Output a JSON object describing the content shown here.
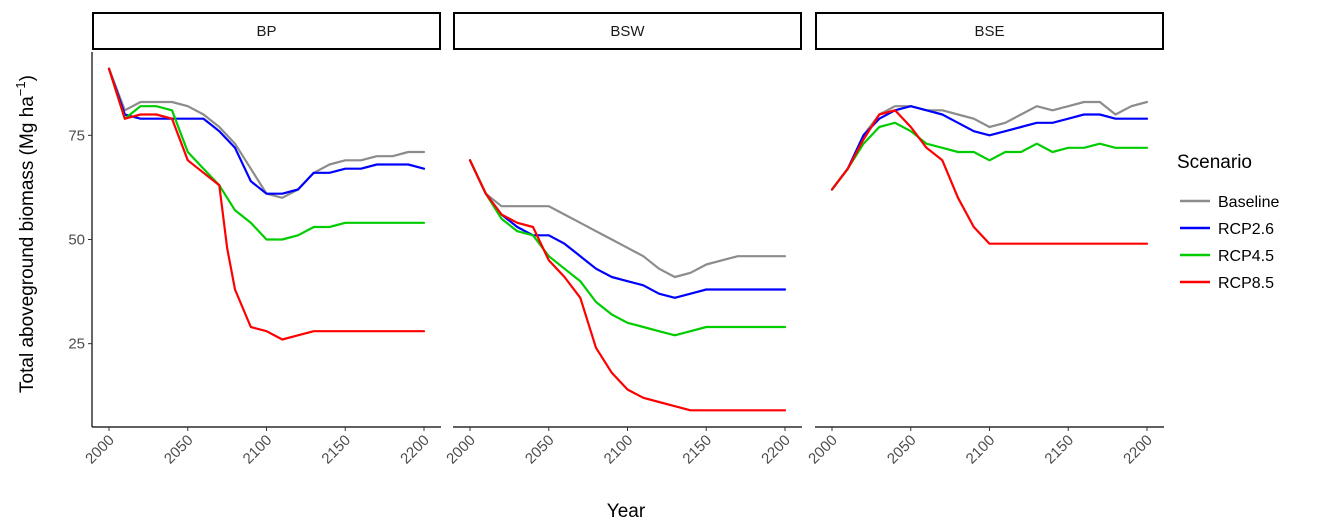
{
  "chart_data": {
    "type": "line",
    "xlabel": "Year",
    "ylabel": "Total aboveground biomass (Mg ha",
    "ylabel_unit_exponent": "−1",
    "ylabel_close": ")",
    "xlim": [
      2000,
      2200
    ],
    "ylim": [
      5,
      95
    ],
    "x_ticks": [
      "2000",
      "2050",
      "2100",
      "2150",
      "2200"
    ],
    "y_ticks": [
      "25",
      "50",
      "75"
    ],
    "legend": {
      "title": "Scenario",
      "position": "right"
    },
    "colors": {
      "Baseline": "#8c8c8c",
      "RCP2.6": "#0000ff",
      "RCP4.5": "#00cc00",
      "RCP8.5": "#ff0000"
    },
    "series_names": [
      "Baseline",
      "RCP2.6",
      "RCP4.5",
      "RCP8.5"
    ],
    "panels": [
      {
        "title": "BP",
        "series": [
          {
            "name": "Baseline",
            "x": [
              2000,
              2010,
              2020,
              2030,
              2040,
              2050,
              2060,
              2070,
              2080,
              2090,
              2100,
              2110,
              2120,
              2130,
              2140,
              2150,
              2160,
              2170,
              2180,
              2190,
              2200
            ],
            "y": [
              91,
              81,
              83,
              83,
              83,
              82,
              80,
              77,
              73,
              67,
              61,
              60,
              62,
              66,
              68,
              69,
              69,
              70,
              70,
              71,
              71
            ]
          },
          {
            "name": "RCP2.6",
            "x": [
              2000,
              2010,
              2020,
              2030,
              2040,
              2050,
              2060,
              2070,
              2080,
              2090,
              2100,
              2110,
              2120,
              2130,
              2140,
              2150,
              2160,
              2170,
              2180,
              2190,
              2200
            ],
            "y": [
              91,
              80,
              79,
              79,
              79,
              79,
              79,
              76,
              72,
              64,
              61,
              61,
              62,
              66,
              66,
              67,
              67,
              68,
              68,
              68,
              67
            ]
          },
          {
            "name": "RCP4.5",
            "x": [
              2000,
              2010,
              2020,
              2030,
              2040,
              2050,
              2060,
              2070,
              2080,
              2090,
              2100,
              2110,
              2120,
              2130,
              2140,
              2150,
              2160,
              2170,
              2180,
              2190,
              2200
            ],
            "y": [
              91,
              79,
              82,
              82,
              81,
              71,
              67,
              63,
              57,
              54,
              50,
              50,
              51,
              53,
              53,
              54,
              54,
              54,
              54,
              54,
              54
            ]
          },
          {
            "name": "RCP8.5",
            "x": [
              2000,
              2010,
              2020,
              2030,
              2040,
              2050,
              2060,
              2070,
              2075,
              2080,
              2090,
              2100,
              2110,
              2120,
              2130,
              2140,
              2150,
              2160,
              2170,
              2180,
              2190,
              2200
            ],
            "y": [
              91,
              79,
              80,
              80,
              79,
              69,
              66,
              63,
              48,
              38,
              29,
              28,
              26,
              27,
              28,
              28,
              28,
              28,
              28,
              28,
              28,
              28
            ]
          }
        ]
      },
      {
        "title": "BSW",
        "series": [
          {
            "name": "Baseline",
            "x": [
              2000,
              2010,
              2020,
              2030,
              2040,
              2050,
              2060,
              2070,
              2080,
              2090,
              2100,
              2110,
              2120,
              2130,
              2140,
              2150,
              2160,
              2170,
              2180,
              2190,
              2200
            ],
            "y": [
              69,
              61,
              58,
              58,
              58,
              58,
              56,
              54,
              52,
              50,
              48,
              46,
              43,
              41,
              42,
              44,
              45,
              46,
              46,
              46,
              46
            ]
          },
          {
            "name": "RCP2.6",
            "x": [
              2000,
              2010,
              2020,
              2030,
              2040,
              2050,
              2060,
              2070,
              2080,
              2090,
              2100,
              2110,
              2120,
              2130,
              2140,
              2150,
              2160,
              2170,
              2180,
              2190,
              2200
            ],
            "y": [
              69,
              61,
              56,
              53,
              51,
              51,
              49,
              46,
              43,
              41,
              40,
              39,
              37,
              36,
              37,
              38,
              38,
              38,
              38,
              38,
              38
            ]
          },
          {
            "name": "RCP4.5",
            "x": [
              2000,
              2010,
              2020,
              2030,
              2040,
              2050,
              2060,
              2070,
              2080,
              2090,
              2100,
              2110,
              2120,
              2130,
              2140,
              2150,
              2160,
              2170,
              2180,
              2190,
              2200
            ],
            "y": [
              69,
              61,
              55,
              52,
              51,
              46,
              43,
              40,
              35,
              32,
              30,
              29,
              28,
              27,
              28,
              29,
              29,
              29,
              29,
              29,
              29
            ]
          },
          {
            "name": "RCP8.5",
            "x": [
              2000,
              2010,
              2020,
              2030,
              2040,
              2050,
              2060,
              2070,
              2080,
              2090,
              2100,
              2110,
              2120,
              2130,
              2140,
              2150,
              2160,
              2170,
              2180,
              2190,
              2200
            ],
            "y": [
              69,
              61,
              56,
              54,
              53,
              45,
              41,
              36,
              24,
              18,
              14,
              12,
              11,
              10,
              9,
              9,
              9,
              9,
              9,
              9,
              9
            ]
          }
        ]
      },
      {
        "title": "BSE",
        "series": [
          {
            "name": "Baseline",
            "x": [
              2000,
              2010,
              2020,
              2030,
              2040,
              2050,
              2060,
              2070,
              2080,
              2090,
              2100,
              2110,
              2120,
              2130,
              2140,
              2150,
              2160,
              2170,
              2180,
              2190,
              2200
            ],
            "y": [
              62,
              67,
              75,
              80,
              82,
              82,
              81,
              81,
              80,
              79,
              77,
              78,
              80,
              82,
              81,
              82,
              83,
              83,
              80,
              82,
              83
            ]
          },
          {
            "name": "RCP2.6",
            "x": [
              2000,
              2010,
              2020,
              2030,
              2040,
              2050,
              2060,
              2070,
              2080,
              2090,
              2100,
              2110,
              2120,
              2130,
              2140,
              2150,
              2160,
              2170,
              2180,
              2190,
              2200
            ],
            "y": [
              62,
              67,
              75,
              79,
              81,
              82,
              81,
              80,
              78,
              76,
              75,
              76,
              77,
              78,
              78,
              79,
              80,
              80,
              79,
              79,
              79
            ]
          },
          {
            "name": "RCP4.5",
            "x": [
              2000,
              2010,
              2020,
              2030,
              2040,
              2050,
              2060,
              2070,
              2080,
              2090,
              2100,
              2110,
              2120,
              2130,
              2140,
              2150,
              2160,
              2170,
              2180,
              2190,
              2200
            ],
            "y": [
              62,
              67,
              73,
              77,
              78,
              76,
              73,
              72,
              71,
              71,
              69,
              71,
              71,
              73,
              71,
              72,
              72,
              73,
              72,
              72,
              72
            ]
          },
          {
            "name": "RCP8.5",
            "x": [
              2000,
              2010,
              2020,
              2030,
              2040,
              2050,
              2060,
              2070,
              2080,
              2090,
              2100,
              2110,
              2120,
              2130,
              2140,
              2150,
              2160,
              2170,
              2180,
              2190,
              2200
            ],
            "y": [
              62,
              67,
              74,
              80,
              81,
              77,
              72,
              69,
              60,
              53,
              49,
              49,
              49,
              49,
              49,
              49,
              49,
              49,
              49,
              49,
              49
            ]
          }
        ]
      }
    ]
  }
}
